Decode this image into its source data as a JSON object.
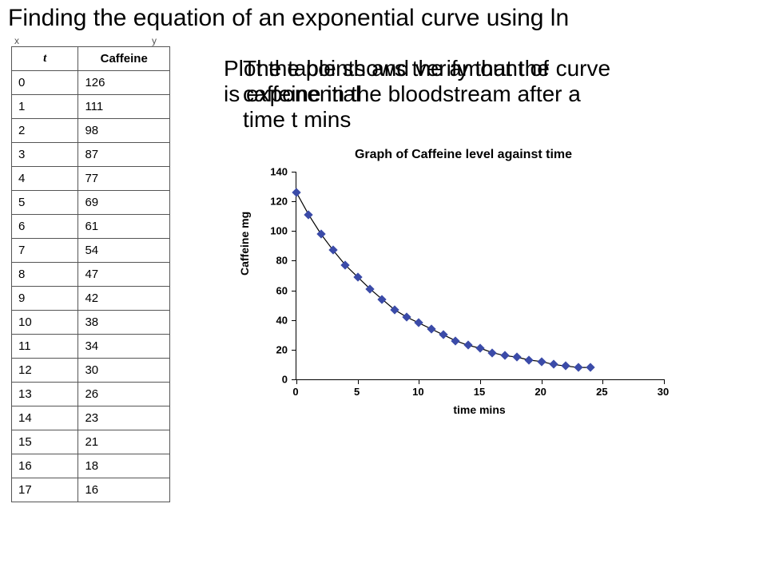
{
  "page_title": "Finding the equation of an exponential curve using ln",
  "small_labels": {
    "x": "x",
    "y": "y"
  },
  "overlay_text": {
    "layer1": "The table shows the amount of\ncaffeine in the bloodstream after a\ntime t mins",
    "layer2": "Plot the points and verify that the curve\nis exponential"
  },
  "table": {
    "columns": [
      "t",
      "Caffeine"
    ],
    "rows": [
      [
        0,
        126
      ],
      [
        1,
        111
      ],
      [
        2,
        98
      ],
      [
        3,
        87
      ],
      [
        4,
        77
      ],
      [
        5,
        69
      ],
      [
        6,
        61
      ],
      [
        7,
        54
      ],
      [
        8,
        47
      ],
      [
        9,
        42
      ],
      [
        10,
        38
      ],
      [
        11,
        34
      ],
      [
        12,
        30
      ],
      [
        13,
        26
      ],
      [
        14,
        23
      ],
      [
        15,
        21
      ],
      [
        16,
        18
      ],
      [
        17,
        16
      ]
    ],
    "col_widths": [
      "42%",
      "58%"
    ],
    "font_size": 15,
    "border_color": "#555555"
  },
  "chart": {
    "type": "scatter",
    "title": "Graph of Caffeine level against time",
    "title_fontsize": 16,
    "xlabel": "time mins",
    "ylabel": "Caffeine mg",
    "label_fontsize": 14,
    "tick_fontsize": 13,
    "xlim": [
      0,
      30
    ],
    "ylim": [
      0,
      140
    ],
    "xtick_step": 5,
    "ytick_step": 20,
    "marker_style": "diamond",
    "marker_size": 8,
    "marker_color": "#3b4ba8",
    "line_color": "#000000",
    "line_width": 1.2,
    "background_color": "#ffffff",
    "axis_color": "#000000",
    "series": {
      "t": [
        0,
        1,
        2,
        3,
        4,
        5,
        6,
        7,
        8,
        9,
        10,
        11,
        12,
        13,
        14,
        15,
        16,
        17,
        18,
        19,
        20,
        21,
        22,
        23,
        24
      ],
      "caffeine": [
        126,
        111,
        98,
        87,
        77,
        69,
        61,
        54,
        47,
        42,
        38,
        34,
        30,
        26,
        23,
        21,
        18,
        16,
        15,
        13,
        12,
        10,
        9,
        8,
        8
      ]
    }
  }
}
